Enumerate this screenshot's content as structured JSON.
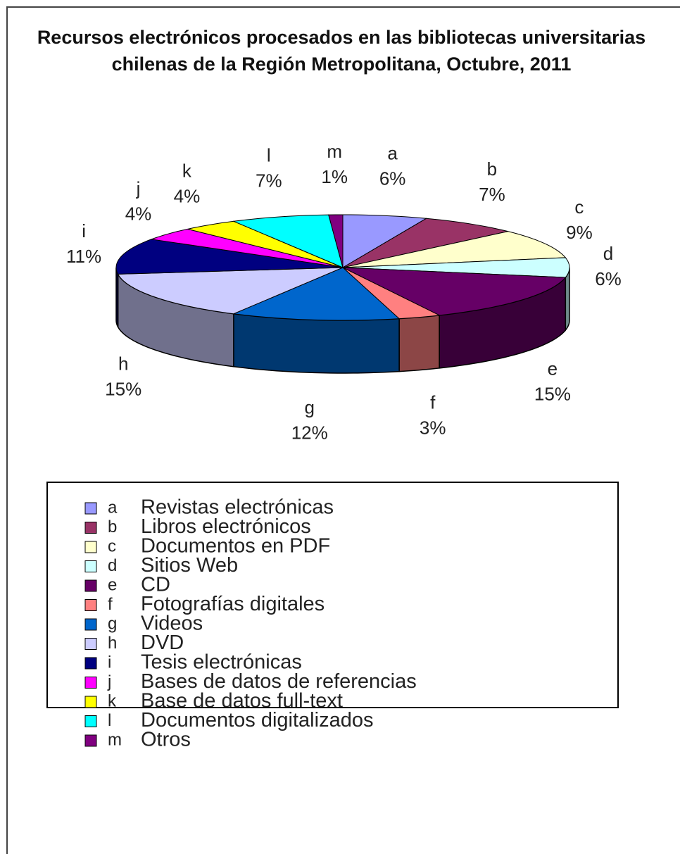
{
  "chart_data": {
    "type": "pie",
    "title": "Recursos electrónicos procesados en las bibliotecas universitarias chilenas de la Región Metropolitana, Octubre, 2011",
    "categories": [
      "a",
      "b",
      "c",
      "d",
      "e",
      "f",
      "g",
      "h",
      "i",
      "j",
      "k",
      "l",
      "m"
    ],
    "descriptions": [
      "Revistas electrónicas",
      "Libros electrónicos",
      "Documentos en PDF",
      "Sitios Web",
      "CD",
      "Fotografías digitales",
      "Videos",
      "DVD",
      "Tesis electrónicas",
      "Bases de datos de referencias",
      "Base de datos full-text",
      "Documentos digitalizados",
      "Otros"
    ],
    "values": [
      6,
      7,
      9,
      6,
      15,
      3,
      12,
      15,
      11,
      4,
      4,
      7,
      1
    ],
    "value_labels": [
      "6%",
      "7%",
      "9%",
      "6%",
      "15%",
      "3%",
      "12%",
      "15%",
      "11%",
      "4%",
      "4%",
      "7%",
      "1%"
    ],
    "colors": [
      "#9999ff",
      "#993366",
      "#ffffcc",
      "#ccffff",
      "#660066",
      "#ff8080",
      "#0066cc",
      "#ccccff",
      "#000080",
      "#ff00ff",
      "#ffff00",
      "#00ffff",
      "#800080"
    ]
  }
}
